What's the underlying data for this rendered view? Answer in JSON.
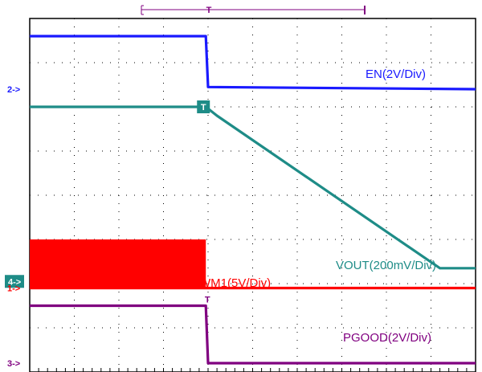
{
  "chart_data": {
    "type": "line",
    "title": "",
    "xlabel": "",
    "ylabel": "",
    "grid": true,
    "x_divisions": 10,
    "y_divisions": 8,
    "xlim": [
      0,
      10
    ],
    "ylim": [
      0,
      8
    ],
    "trigger_x": 3.95,
    "trigger_label": "T",
    "series": [
      {
        "name": "EN(2V/Div)",
        "color": "#1a1aff",
        "channel_marker": "2->",
        "ground_level": 6.4,
        "points": [
          [
            0,
            7.6
          ],
          [
            3.95,
            7.6
          ],
          [
            4.0,
            6.45
          ],
          [
            10,
            6.4
          ]
        ]
      },
      {
        "name": "VOUT(200mV/Div)",
        "color": "#1e8c87",
        "channel_marker": "4->",
        "ground_level": 2.05,
        "points": [
          [
            0,
            6.0
          ],
          [
            3.95,
            6.0
          ],
          [
            4.2,
            5.8
          ],
          [
            9.2,
            2.35
          ],
          [
            10,
            2.35
          ]
        ]
      },
      {
        "name": "PWM1(5V/Div)",
        "color": "#ff0000",
        "channel_marker": "1->",
        "ground_level": 1.9,
        "burst": {
          "start": 0,
          "end": 3.95,
          "high": 3.0
        },
        "points": [
          [
            0,
            1.9
          ],
          [
            10,
            1.9
          ]
        ]
      },
      {
        "name": "PGOOD(2V/Div)",
        "color": "#800080",
        "channel_marker": "3->",
        "ground_level": 0.2,
        "points": [
          [
            0,
            1.5
          ],
          [
            3.95,
            1.5
          ],
          [
            4.0,
            0.2
          ],
          [
            10,
            0.2
          ]
        ]
      }
    ]
  }
}
